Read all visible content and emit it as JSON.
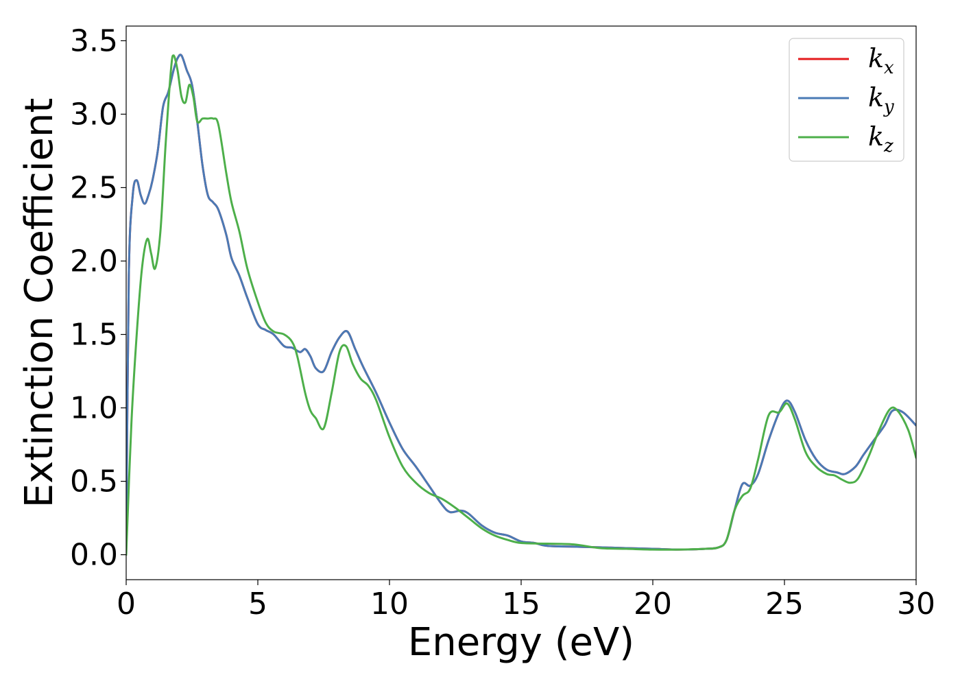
{
  "chart_data": {
    "type": "line",
    "xlabel": "Energy (eV)",
    "ylabel": "Extinction Coefficient",
    "xlim": [
      0,
      30
    ],
    "ylim": [
      -0.17,
      3.6
    ],
    "xticks": [
      0,
      5,
      10,
      15,
      20,
      25,
      30
    ],
    "xtick_labels": [
      "0",
      "5",
      "10",
      "15",
      "20",
      "25",
      "30"
    ],
    "yticks": [
      0.0,
      0.5,
      1.0,
      1.5,
      2.0,
      2.5,
      3.0,
      3.5
    ],
    "ytick_labels": [
      "0.0",
      "0.5",
      "1.0",
      "1.5",
      "2.0",
      "2.5",
      "3.0",
      "3.5"
    ],
    "grid": false,
    "legend_position": "top-right",
    "series": [
      {
        "name": "k",
        "subscript": "x",
        "color": "#e41a1c",
        "x": [
          0,
          0.1,
          0.25,
          0.4,
          0.55,
          0.7,
          0.85,
          1.0,
          1.2,
          1.4,
          1.6,
          1.8,
          1.95,
          2.1,
          2.3,
          2.5,
          2.7,
          2.9,
          3.1,
          3.3,
          3.5,
          3.8,
          4.0,
          4.3,
          4.6,
          5.0,
          5.3,
          5.6,
          6.0,
          6.3,
          6.6,
          6.8,
          7.0,
          7.2,
          7.5,
          7.8,
          8.1,
          8.4,
          8.7,
          9.0,
          9.5,
          10.0,
          10.5,
          11.0,
          11.5,
          12.0,
          12.3,
          12.7,
          13.0,
          13.5,
          14.0,
          14.5,
          15.0,
          15.5,
          16.0,
          17.0,
          18.0,
          19.0,
          20.0,
          21.0,
          22.0,
          22.5,
          22.8,
          23.1,
          23.4,
          23.7,
          24.0,
          24.4,
          24.8,
          25.1,
          25.4,
          25.8,
          26.2,
          26.6,
          27.0,
          27.3,
          27.7,
          28.0,
          28.4,
          28.8,
          29.1,
          29.5,
          30.0
        ],
        "values": [
          0.0,
          1.9,
          2.45,
          2.55,
          2.45,
          2.39,
          2.45,
          2.55,
          2.75,
          3.05,
          3.15,
          3.3,
          3.38,
          3.4,
          3.3,
          3.2,
          2.95,
          2.65,
          2.45,
          2.4,
          2.35,
          2.18,
          2.02,
          1.9,
          1.75,
          1.57,
          1.53,
          1.5,
          1.42,
          1.41,
          1.38,
          1.4,
          1.35,
          1.27,
          1.25,
          1.38,
          1.48,
          1.52,
          1.4,
          1.28,
          1.1,
          0.9,
          0.72,
          0.6,
          0.47,
          0.34,
          0.29,
          0.3,
          0.28,
          0.2,
          0.15,
          0.13,
          0.09,
          0.08,
          0.06,
          0.055,
          0.05,
          0.045,
          0.04,
          0.035,
          0.04,
          0.05,
          0.1,
          0.3,
          0.48,
          0.47,
          0.55,
          0.78,
          0.97,
          1.05,
          0.97,
          0.78,
          0.65,
          0.58,
          0.56,
          0.55,
          0.6,
          0.68,
          0.78,
          0.88,
          0.98,
          0.97,
          0.88
        ]
      },
      {
        "name": "k",
        "subscript": "y",
        "color": "#4a7ab5",
        "x": [
          0,
          0.1,
          0.25,
          0.4,
          0.55,
          0.7,
          0.85,
          1.0,
          1.2,
          1.4,
          1.6,
          1.8,
          1.95,
          2.1,
          2.3,
          2.5,
          2.7,
          2.9,
          3.1,
          3.3,
          3.5,
          3.8,
          4.0,
          4.3,
          4.6,
          5.0,
          5.3,
          5.6,
          6.0,
          6.3,
          6.6,
          6.8,
          7.0,
          7.2,
          7.5,
          7.8,
          8.1,
          8.4,
          8.7,
          9.0,
          9.5,
          10.0,
          10.5,
          11.0,
          11.5,
          12.0,
          12.3,
          12.7,
          13.0,
          13.5,
          14.0,
          14.5,
          15.0,
          15.5,
          16.0,
          17.0,
          18.0,
          19.0,
          20.0,
          21.0,
          22.0,
          22.5,
          22.8,
          23.1,
          23.4,
          23.7,
          24.0,
          24.4,
          24.8,
          25.1,
          25.4,
          25.8,
          26.2,
          26.6,
          27.0,
          27.3,
          27.7,
          28.0,
          28.4,
          28.8,
          29.1,
          29.5,
          30.0
        ],
        "values": [
          0.0,
          1.9,
          2.45,
          2.55,
          2.45,
          2.39,
          2.45,
          2.55,
          2.75,
          3.05,
          3.15,
          3.3,
          3.38,
          3.4,
          3.3,
          3.2,
          2.95,
          2.65,
          2.45,
          2.4,
          2.35,
          2.18,
          2.02,
          1.9,
          1.75,
          1.57,
          1.53,
          1.5,
          1.42,
          1.41,
          1.38,
          1.4,
          1.35,
          1.27,
          1.25,
          1.38,
          1.48,
          1.52,
          1.4,
          1.28,
          1.1,
          0.9,
          0.72,
          0.6,
          0.47,
          0.34,
          0.29,
          0.3,
          0.28,
          0.2,
          0.15,
          0.13,
          0.09,
          0.08,
          0.06,
          0.055,
          0.05,
          0.045,
          0.04,
          0.035,
          0.04,
          0.05,
          0.1,
          0.3,
          0.48,
          0.47,
          0.55,
          0.78,
          0.97,
          1.05,
          0.97,
          0.78,
          0.65,
          0.58,
          0.56,
          0.55,
          0.6,
          0.68,
          0.78,
          0.88,
          0.98,
          0.97,
          0.88
        ]
      },
      {
        "name": "k",
        "subscript": "z",
        "color": "#4daf4a",
        "x": [
          0,
          0.2,
          0.4,
          0.6,
          0.8,
          0.95,
          1.1,
          1.3,
          1.5,
          1.7,
          1.8,
          1.95,
          2.1,
          2.25,
          2.4,
          2.55,
          2.7,
          2.9,
          3.1,
          3.3,
          3.5,
          3.8,
          4.0,
          4.3,
          4.6,
          5.0,
          5.3,
          5.6,
          6.0,
          6.3,
          6.5,
          6.8,
          7.0,
          7.2,
          7.5,
          7.8,
          8.1,
          8.35,
          8.6,
          8.9,
          9.2,
          9.5,
          10.0,
          10.5,
          11.0,
          11.5,
          12.0,
          12.5,
          13.0,
          13.5,
          14.0,
          14.5,
          15.0,
          16.0,
          17.0,
          18.0,
          19.0,
          20.0,
          21.0,
          22.0,
          22.5,
          22.8,
          23.1,
          23.4,
          23.7,
          24.0,
          24.4,
          24.8,
          25.1,
          25.4,
          25.8,
          26.2,
          26.6,
          26.9,
          27.2,
          27.5,
          27.8,
          28.2,
          28.6,
          29.0,
          29.3,
          29.7,
          30.0
        ],
        "values": [
          0.0,
          0.9,
          1.5,
          1.95,
          2.15,
          2.05,
          1.95,
          2.2,
          2.8,
          3.3,
          3.4,
          3.3,
          3.12,
          3.08,
          3.2,
          3.12,
          2.95,
          2.97,
          2.97,
          2.97,
          2.93,
          2.6,
          2.4,
          2.2,
          1.95,
          1.72,
          1.58,
          1.52,
          1.5,
          1.45,
          1.35,
          1.1,
          0.98,
          0.93,
          0.86,
          1.1,
          1.38,
          1.42,
          1.3,
          1.2,
          1.15,
          1.05,
          0.8,
          0.6,
          0.49,
          0.42,
          0.38,
          0.32,
          0.25,
          0.18,
          0.13,
          0.1,
          0.08,
          0.075,
          0.07,
          0.045,
          0.04,
          0.035,
          0.035,
          0.04,
          0.05,
          0.1,
          0.3,
          0.4,
          0.45,
          0.65,
          0.95,
          0.97,
          1.03,
          0.92,
          0.7,
          0.6,
          0.55,
          0.54,
          0.51,
          0.49,
          0.52,
          0.67,
          0.85,
          0.99,
          0.98,
          0.85,
          0.66
        ]
      }
    ]
  }
}
